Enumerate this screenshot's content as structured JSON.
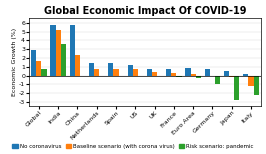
{
  "chart_data": {
    "type": "bar",
    "title": "Global Economic Impact Of COVID-19",
    "ylabel": "Economic Growth (%)",
    "categories": [
      "Global",
      "India",
      "China",
      "Netherlands",
      "Spain",
      "US",
      "UK",
      "France",
      "Euro Area",
      "Germany",
      "Japan",
      "Italy"
    ],
    "series": [
      {
        "name": "No coronavirus",
        "values": [
          2.9,
          5.8,
          5.8,
          1.4,
          1.4,
          1.2,
          0.8,
          0.8,
          0.9,
          0.7,
          0.5,
          0.2
        ]
      },
      {
        "name": "Baseline scenario (with corona virus)",
        "values": [
          1.6,
          5.2,
          2.3,
          0.7,
          0.7,
          0.7,
          0.4,
          0.3,
          0.2,
          -0.1,
          -0.2,
          -1.2
        ]
      },
      {
        "name": "Risk scenario: pandemic",
        "values": [
          0.7,
          3.6,
          -0.1,
          -0.1,
          -0.1,
          -0.1,
          -0.1,
          -0.2,
          -0.3,
          -1.0,
          -2.8,
          -2.2
        ]
      }
    ],
    "ylim": [
      -3.5,
      6.5
    ],
    "yticks": [
      -3,
      -2,
      -1,
      0,
      1,
      2,
      3,
      4,
      5,
      6
    ],
    "grid": true,
    "legend": "lower center"
  }
}
